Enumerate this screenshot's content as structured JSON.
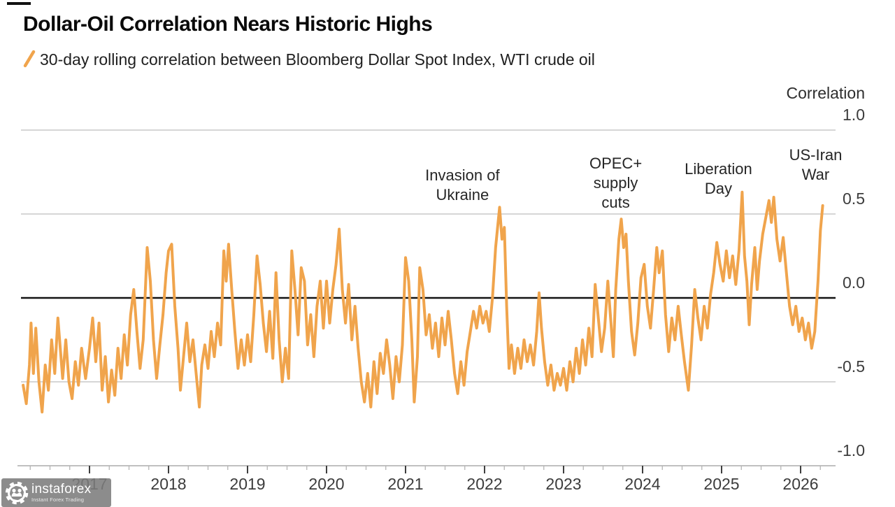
{
  "header": {
    "title": "Dollar-Oil Correlation Nears Historic Highs",
    "legend_label": "30-day rolling correlation between Bloomberg Dollar Spot Index, WTI crude oil"
  },
  "watermark": {
    "brand": "instaforex",
    "tagline": "Instant Forex Trading"
  },
  "colors": {
    "line": "#F0A44C",
    "zero_line": "#141414",
    "gridline": "#c9c9c9",
    "axis_line": "#c0c0c0",
    "major_tick": "#3f3f3f",
    "minor_tick": "#b5b5b5"
  },
  "chart_data": {
    "type": "line",
    "title": "Dollar-Oil Correlation Nears Historic Highs",
    "subtitle": "30-day rolling correlation between Bloomberg Dollar Spot Index, WTI crude oil",
    "legend_position": "top-left",
    "grid": true,
    "y_axis": {
      "title": "Correlation",
      "side": "right",
      "tick_labels": [
        "1.0",
        "0.5",
        "0.0",
        "-0.5",
        "-1.0"
      ],
      "tick_values": [
        1.0,
        0.5,
        0.0,
        -0.5,
        -1.0
      ],
      "range": [
        -1.0,
        1.0
      ],
      "zero_line": true
    },
    "x_axis": {
      "tick_years": [
        2017,
        2018,
        2019,
        2020,
        2021,
        2022,
        2023,
        2024,
        2025,
        2026
      ],
      "minor_tick_step_years": 0.25,
      "domain_years": [
        2016.16,
        2026.45
      ]
    },
    "annotations": [
      {
        "id": "invasion-of-ukraine",
        "lines": [
          "Invasion of",
          "Ukraine"
        ],
        "anchor_year": 2021.72,
        "anchor_value": 0.787
      },
      {
        "id": "opec-supply-cuts",
        "lines": [
          "OPEC+",
          "supply",
          "cuts"
        ],
        "anchor_year": 2023.66,
        "anchor_value": 0.858
      },
      {
        "id": "liberation-day",
        "lines": [
          "Liberation",
          "Day"
        ],
        "anchor_year": 2024.96,
        "anchor_value": 0.825
      },
      {
        "id": "us-iran-war",
        "lines": [
          "US-Iran",
          "War"
        ],
        "anchor_year": 2026.19,
        "anchor_value": 0.908
      }
    ],
    "series": [
      {
        "name": "30-day rolling correlation between Bloomberg Dollar Spot Index, WTI crude oil",
        "color": "#F0A44C",
        "points": [
          [
            2016.16,
            -0.52
          ],
          [
            2016.2,
            -0.63
          ],
          [
            2016.24,
            -0.4
          ],
          [
            2016.26,
            -0.15
          ],
          [
            2016.29,
            -0.45
          ],
          [
            2016.32,
            -0.18
          ],
          [
            2016.36,
            -0.5
          ],
          [
            2016.4,
            -0.68
          ],
          [
            2016.44,
            -0.4
          ],
          [
            2016.48,
            -0.55
          ],
          [
            2016.52,
            -0.25
          ],
          [
            2016.56,
            -0.45
          ],
          [
            2016.6,
            -0.12
          ],
          [
            2016.63,
            -0.3
          ],
          [
            2016.66,
            -0.48
          ],
          [
            2016.7,
            -0.25
          ],
          [
            2016.74,
            -0.5
          ],
          [
            2016.78,
            -0.6
          ],
          [
            2016.82,
            -0.38
          ],
          [
            2016.86,
            -0.52
          ],
          [
            2016.9,
            -0.3
          ],
          [
            2016.95,
            -0.48
          ],
          [
            2017.0,
            -0.3
          ],
          [
            2017.04,
            -0.12
          ],
          [
            2017.08,
            -0.38
          ],
          [
            2017.12,
            -0.15
          ],
          [
            2017.16,
            -0.55
          ],
          [
            2017.2,
            -0.35
          ],
          [
            2017.24,
            -0.62
          ],
          [
            2017.28,
            -0.43
          ],
          [
            2017.32,
            -0.58
          ],
          [
            2017.36,
            -0.3
          ],
          [
            2017.4,
            -0.48
          ],
          [
            2017.44,
            -0.22
          ],
          [
            2017.48,
            -0.4
          ],
          [
            2017.52,
            -0.1
          ],
          [
            2017.56,
            0.05
          ],
          [
            2017.6,
            -0.2
          ],
          [
            2017.64,
            -0.42
          ],
          [
            2017.68,
            -0.25
          ],
          [
            2017.73,
            0.3
          ],
          [
            2017.77,
            0.1
          ],
          [
            2017.81,
            -0.25
          ],
          [
            2017.85,
            -0.48
          ],
          [
            2017.89,
            -0.28
          ],
          [
            2017.93,
            -0.1
          ],
          [
            2017.97,
            0.15
          ],
          [
            2018.0,
            0.28
          ],
          [
            2018.04,
            0.32
          ],
          [
            2018.08,
            -0.05
          ],
          [
            2018.12,
            -0.3
          ],
          [
            2018.15,
            -0.55
          ],
          [
            2018.19,
            -0.35
          ],
          [
            2018.23,
            -0.15
          ],
          [
            2018.27,
            -0.38
          ],
          [
            2018.31,
            -0.25
          ],
          [
            2018.35,
            -0.45
          ],
          [
            2018.39,
            -0.65
          ],
          [
            2018.42,
            -0.4
          ],
          [
            2018.46,
            -0.28
          ],
          [
            2018.5,
            -0.42
          ],
          [
            2018.54,
            -0.2
          ],
          [
            2018.58,
            -0.35
          ],
          [
            2018.62,
            -0.15
          ],
          [
            2018.66,
            -0.28
          ],
          [
            2018.7,
            0.28
          ],
          [
            2018.73,
            0.1
          ],
          [
            2018.76,
            0.32
          ],
          [
            2018.8,
            0.05
          ],
          [
            2018.84,
            -0.2
          ],
          [
            2018.88,
            -0.42
          ],
          [
            2018.92,
            -0.25
          ],
          [
            2018.96,
            -0.4
          ],
          [
            2019.0,
            -0.22
          ],
          [
            2019.04,
            -0.38
          ],
          [
            2019.08,
            -0.1
          ],
          [
            2019.12,
            0.25
          ],
          [
            2019.16,
            0.08
          ],
          [
            2019.2,
            -0.15
          ],
          [
            2019.24,
            -0.32
          ],
          [
            2019.28,
            -0.08
          ],
          [
            2019.32,
            -0.36
          ],
          [
            2019.36,
            0.15
          ],
          [
            2019.4,
            -0.25
          ],
          [
            2019.44,
            -0.5
          ],
          [
            2019.48,
            -0.3
          ],
          [
            2019.52,
            -0.48
          ],
          [
            2019.56,
            0.28
          ],
          [
            2019.6,
            0.05
          ],
          [
            2019.64,
            -0.22
          ],
          [
            2019.68,
            0.18
          ],
          [
            2019.72,
            0.1
          ],
          [
            2019.76,
            -0.28
          ],
          [
            2019.8,
            -0.1
          ],
          [
            2019.84,
            -0.35
          ],
          [
            2019.88,
            -0.05
          ],
          [
            2019.92,
            0.1
          ],
          [
            2019.96,
            -0.18
          ],
          [
            2020.0,
            0.1
          ],
          [
            2020.04,
            -0.15
          ],
          [
            2020.08,
            0.05
          ],
          [
            2020.12,
            0.2
          ],
          [
            2020.16,
            0.41
          ],
          [
            2020.2,
            0.05
          ],
          [
            2020.24,
            -0.15
          ],
          [
            2020.28,
            0.08
          ],
          [
            2020.32,
            -0.25
          ],
          [
            2020.36,
            -0.05
          ],
          [
            2020.4,
            -0.3
          ],
          [
            2020.44,
            -0.5
          ],
          [
            2020.48,
            -0.62
          ],
          [
            2020.52,
            -0.45
          ],
          [
            2020.56,
            -0.65
          ],
          [
            2020.6,
            -0.38
          ],
          [
            2020.64,
            -0.57
          ],
          [
            2020.68,
            -0.33
          ],
          [
            2020.72,
            -0.45
          ],
          [
            2020.76,
            -0.25
          ],
          [
            2020.8,
            -0.4
          ],
          [
            2020.84,
            -0.6
          ],
          [
            2020.88,
            -0.35
          ],
          [
            2020.92,
            -0.5
          ],
          [
            2020.96,
            -0.28
          ],
          [
            2021.0,
            0.24
          ],
          [
            2021.04,
            0.1
          ],
          [
            2021.08,
            -0.25
          ],
          [
            2021.11,
            -0.62
          ],
          [
            2021.15,
            -0.35
          ],
          [
            2021.18,
            0.18
          ],
          [
            2021.22,
            0.05
          ],
          [
            2021.26,
            -0.22
          ],
          [
            2021.3,
            -0.1
          ],
          [
            2021.34,
            -0.3
          ],
          [
            2021.38,
            -0.15
          ],
          [
            2021.42,
            -0.35
          ],
          [
            2021.46,
            -0.12
          ],
          [
            2021.5,
            -0.28
          ],
          [
            2021.54,
            -0.08
          ],
          [
            2021.58,
            -0.25
          ],
          [
            2021.62,
            -0.45
          ],
          [
            2021.66,
            -0.57
          ],
          [
            2021.7,
            -0.38
          ],
          [
            2021.74,
            -0.52
          ],
          [
            2021.78,
            -0.32
          ],
          [
            2021.82,
            -0.2
          ],
          [
            2021.86,
            -0.08
          ],
          [
            2021.9,
            -0.18
          ],
          [
            2021.94,
            -0.05
          ],
          [
            2021.98,
            -0.15
          ],
          [
            2022.02,
            -0.08
          ],
          [
            2022.06,
            -0.2
          ],
          [
            2022.1,
            0.0
          ],
          [
            2022.14,
            0.3
          ],
          [
            2022.19,
            0.54
          ],
          [
            2022.22,
            0.35
          ],
          [
            2022.25,
            0.42
          ],
          [
            2022.28,
            -0.05
          ],
          [
            2022.31,
            -0.42
          ],
          [
            2022.34,
            -0.28
          ],
          [
            2022.38,
            -0.45
          ],
          [
            2022.42,
            -0.3
          ],
          [
            2022.46,
            -0.42
          ],
          [
            2022.5,
            -0.25
          ],
          [
            2022.54,
            -0.38
          ],
          [
            2022.58,
            -0.28
          ],
          [
            2022.62,
            -0.4
          ],
          [
            2022.66,
            -0.2
          ],
          [
            2022.69,
            0.03
          ],
          [
            2022.72,
            -0.18
          ],
          [
            2022.76,
            -0.38
          ],
          [
            2022.8,
            -0.52
          ],
          [
            2022.84,
            -0.4
          ],
          [
            2022.88,
            -0.55
          ],
          [
            2022.92,
            -0.45
          ],
          [
            2022.96,
            -0.52
          ],
          [
            2023.0,
            -0.42
          ],
          [
            2023.04,
            -0.55
          ],
          [
            2023.08,
            -0.38
          ],
          [
            2023.12,
            -0.5
          ],
          [
            2023.16,
            -0.3
          ],
          [
            2023.2,
            -0.45
          ],
          [
            2023.24,
            -0.25
          ],
          [
            2023.28,
            -0.4
          ],
          [
            2023.32,
            -0.18
          ],
          [
            2023.36,
            -0.35
          ],
          [
            2023.4,
            0.08
          ],
          [
            2023.44,
            -0.12
          ],
          [
            2023.48,
            -0.32
          ],
          [
            2023.52,
            -0.18
          ],
          [
            2023.56,
            0.1
          ],
          [
            2023.6,
            -0.15
          ],
          [
            2023.63,
            -0.35
          ],
          [
            2023.66,
            0.05
          ],
          [
            2023.7,
            0.35
          ],
          [
            2023.73,
            0.47
          ],
          [
            2023.76,
            0.3
          ],
          [
            2023.79,
            0.38
          ],
          [
            2023.82,
            0.1
          ],
          [
            2023.86,
            -0.2
          ],
          [
            2023.9,
            -0.34
          ],
          [
            2023.94,
            -0.15
          ],
          [
            2023.98,
            0.12
          ],
          [
            2024.02,
            0.2
          ],
          [
            2024.06,
            -0.05
          ],
          [
            2024.1,
            -0.18
          ],
          [
            2024.14,
            0.05
          ],
          [
            2024.18,
            0.3
          ],
          [
            2024.21,
            0.15
          ],
          [
            2024.25,
            0.28
          ],
          [
            2024.29,
            -0.1
          ],
          [
            2024.33,
            -0.32
          ],
          [
            2024.37,
            -0.12
          ],
          [
            2024.41,
            -0.25
          ],
          [
            2024.45,
            -0.05
          ],
          [
            2024.49,
            -0.22
          ],
          [
            2024.53,
            -0.38
          ],
          [
            2024.58,
            -0.55
          ],
          [
            2024.62,
            -0.28
          ],
          [
            2024.66,
            0.05
          ],
          [
            2024.7,
            -0.12
          ],
          [
            2024.74,
            -0.25
          ],
          [
            2024.78,
            -0.05
          ],
          [
            2024.82,
            -0.18
          ],
          [
            2024.86,
            0.02
          ],
          [
            2024.9,
            0.15
          ],
          [
            2024.94,
            0.33
          ],
          [
            2024.98,
            0.2
          ],
          [
            2025.02,
            0.1
          ],
          [
            2025.06,
            0.28
          ],
          [
            2025.1,
            0.12
          ],
          [
            2025.14,
            0.25
          ],
          [
            2025.18,
            0.08
          ],
          [
            2025.22,
            0.28
          ],
          [
            2025.26,
            0.63
          ],
          [
            2025.29,
            0.25
          ],
          [
            2025.32,
            0.1
          ],
          [
            2025.35,
            -0.16
          ],
          [
            2025.38,
            0.08
          ],
          [
            2025.42,
            0.3
          ],
          [
            2025.45,
            0.05
          ],
          [
            2025.48,
            0.22
          ],
          [
            2025.52,
            0.38
          ],
          [
            2025.56,
            0.48
          ],
          [
            2025.6,
            0.58
          ],
          [
            2025.63,
            0.45
          ],
          [
            2025.66,
            0.6
          ],
          [
            2025.7,
            0.35
          ],
          [
            2025.74,
            0.22
          ],
          [
            2025.78,
            0.36
          ],
          [
            2025.82,
            0.15
          ],
          [
            2025.86,
            -0.05
          ],
          [
            2025.9,
            -0.16
          ],
          [
            2025.94,
            -0.05
          ],
          [
            2025.98,
            -0.2
          ],
          [
            2026.02,
            -0.12
          ],
          [
            2026.06,
            -0.25
          ],
          [
            2026.1,
            -0.15
          ],
          [
            2026.14,
            -0.3
          ],
          [
            2026.18,
            -0.2
          ],
          [
            2026.22,
            0.1
          ],
          [
            2026.25,
            0.4
          ],
          [
            2026.28,
            0.55
          ]
        ]
      }
    ]
  }
}
